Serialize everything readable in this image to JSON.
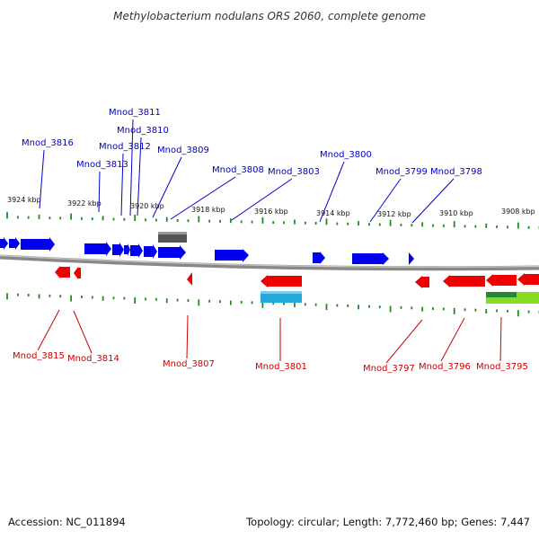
{
  "title": "Methylobacterium nodulans ORS 2060, complete genome",
  "footer": {
    "accession": "Accession: NC_011894",
    "topology": "Topology: circular; Length: 7,772,460 bp; Genes: 7,447"
  },
  "colors": {
    "forward": "#0000ee",
    "reverse": "#ee0000",
    "tick": "#1e8c1e",
    "backbone": "#888888",
    "label_forward": "#0000cc",
    "label_reverse": "#cc0000"
  },
  "kbp_labels": [
    "3924 kbp",
    "3922 kbp",
    "3920 kbp",
    "3918 kbp",
    "3916 kbp",
    "3914 kbp",
    "3912 kbp",
    "3910 kbp",
    "3908 kbp"
  ],
  "forward_labels": [
    "Mnod_3816",
    "Mnod_3813",
    "Mnod_3812",
    "Mnod_3811",
    "Mnod_3810",
    "Mnod_3809",
    "Mnod_3808",
    "Mnod_3803",
    "Mnod_3800",
    "Mnod_3799",
    "Mnod_3798"
  ],
  "reverse_labels": [
    "Mnod_3815",
    "Mnod_3814",
    "Mnod_3807",
    "Mnod_3801",
    "Mnod_3797",
    "Mnod_3796",
    "Mnod_3795"
  ]
}
